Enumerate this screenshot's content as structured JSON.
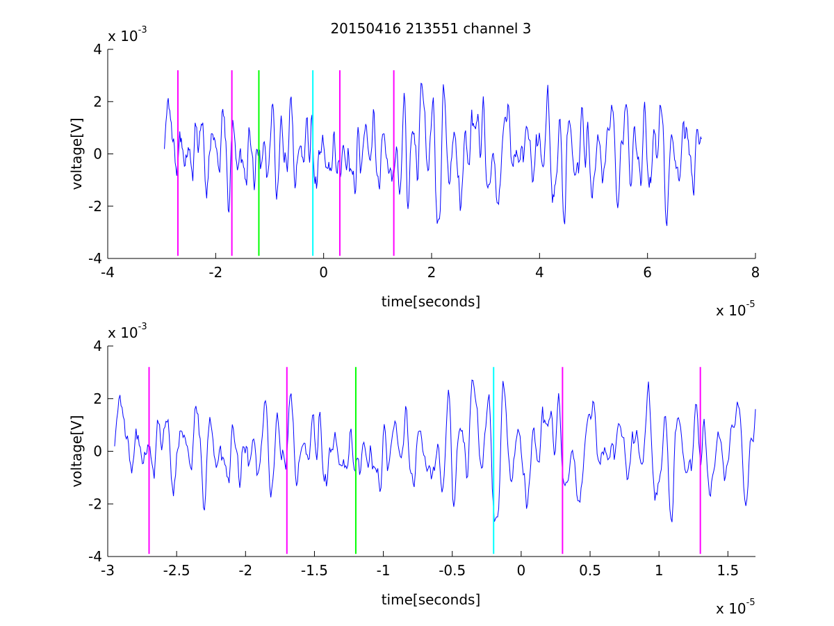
{
  "figure": {
    "title": "20150416 213551 channel 3"
  },
  "chart_data": [
    {
      "type": "line",
      "xlabel": "time[seconds]",
      "ylabel": "voltage[V]",
      "x_exponent": {
        "base": "x 10",
        "power": "-5"
      },
      "y_exponent": {
        "base": "x 10",
        "power": "-3"
      },
      "xlim": [
        -4,
        8
      ],
      "ylim": [
        -4,
        4
      ],
      "x_ticks": [
        -4,
        -2,
        0,
        2,
        4,
        6,
        8
      ],
      "x_tick_labels": [
        "-4",
        "-2",
        "0",
        "2",
        "4",
        "6",
        "8"
      ],
      "y_ticks": [
        -4,
        -2,
        0,
        2,
        4
      ],
      "y_tick_labels": [
        "-4",
        "-2",
        "0",
        "2",
        "4"
      ],
      "grid": false,
      "signal": {
        "color": "#0000ff",
        "x_start": -2.95,
        "x_end": 7.0,
        "num_points": 700,
        "seed": 20150416,
        "rms": 1.0,
        "peak_abs": 3.0
      },
      "markers": [
        {
          "x": -2.7,
          "ymin": -3.9,
          "ymax": 3.2,
          "color": "#ff00ff"
        },
        {
          "x": -1.7,
          "ymin": -3.9,
          "ymax": 3.2,
          "color": "#ff00ff"
        },
        {
          "x": -1.2,
          "ymin": -3.9,
          "ymax": 3.2,
          "color": "#00ff00"
        },
        {
          "x": -0.2,
          "ymin": -3.9,
          "ymax": 3.2,
          "color": "#00ffff"
        },
        {
          "x": 0.3,
          "ymin": -3.9,
          "ymax": 3.2,
          "color": "#ff00ff"
        },
        {
          "x": 1.3,
          "ymin": -3.9,
          "ymax": 3.2,
          "color": "#ff00ff"
        }
      ]
    },
    {
      "type": "line",
      "xlabel": "time[seconds]",
      "ylabel": "voltage[V]",
      "x_exponent": {
        "base": "x 10",
        "power": "-5"
      },
      "y_exponent": {
        "base": "x 10",
        "power": "-3"
      },
      "xlim": [
        -3.0,
        1.7
      ],
      "ylim": [
        -4,
        4
      ],
      "x_ticks": [
        -3,
        -2.5,
        -2,
        -1.5,
        -1,
        -0.5,
        0,
        0.5,
        1,
        1.5
      ],
      "x_tick_labels": [
        "-3",
        "-2.5",
        "-2",
        "-1.5",
        "-1",
        "-0.5",
        "0",
        "0.5",
        "1",
        "1.5"
      ],
      "y_ticks": [
        -4,
        -2,
        0,
        2,
        4
      ],
      "y_tick_labels": [
        "-4",
        "-2",
        "0",
        "2",
        "4"
      ],
      "grid": false,
      "signal": {
        "color": "#0000ff",
        "x_start": -2.95,
        "x_end": 1.7,
        "num_points": 600,
        "seed": 20150416,
        "rms": 1.0,
        "peak_abs": 3.0
      },
      "markers": [
        {
          "x": -2.7,
          "ymin": -3.9,
          "ymax": 3.2,
          "color": "#ff00ff"
        },
        {
          "x": -1.7,
          "ymin": -3.9,
          "ymax": 3.2,
          "color": "#ff00ff"
        },
        {
          "x": -1.2,
          "ymin": -3.9,
          "ymax": 3.2,
          "color": "#00ff00"
        },
        {
          "x": -0.2,
          "ymin": -3.9,
          "ymax": 3.2,
          "color": "#00ffff"
        },
        {
          "x": 0.3,
          "ymin": -3.9,
          "ymax": 3.2,
          "color": "#ff00ff"
        },
        {
          "x": 1.3,
          "ymin": -3.9,
          "ymax": 3.2,
          "color": "#ff00ff"
        }
      ]
    }
  ]
}
